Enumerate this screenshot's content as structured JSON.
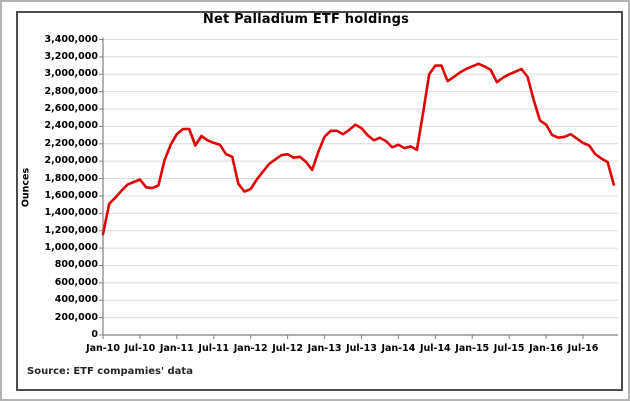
{
  "source": "Source: ETF compamies' data",
  "chart_data": {
    "type": "line",
    "title": "Net Palladium ETF holdings",
    "xlabel": "",
    "ylabel": "Ounces",
    "ylim": [
      0,
      3400000
    ],
    "ytick_step": 200000,
    "grid": "horizontal",
    "legend_position": "none",
    "line_color": "#e00404",
    "grid_color": "#dcdcdc",
    "axis_color": "#7f7f7f",
    "x_tick_labels": [
      "Jan-10",
      "Jul-10",
      "Jan-11",
      "Jul-11",
      "Jan-12",
      "Jul-12",
      "Jan-13",
      "Jul-13",
      "Jan-14",
      "Jul-14",
      "Jan-15",
      "Jul-15",
      "Jan-16",
      "Jul-16"
    ],
    "x_tick_every": 6,
    "categories": [
      "Jan-10",
      "Feb-10",
      "Mar-10",
      "Apr-10",
      "May-10",
      "Jun-10",
      "Jul-10",
      "Aug-10",
      "Sep-10",
      "Oct-10",
      "Nov-10",
      "Dec-10",
      "Jan-11",
      "Feb-11",
      "Mar-11",
      "Apr-11",
      "May-11",
      "Jun-11",
      "Jul-11",
      "Aug-11",
      "Sep-11",
      "Oct-11",
      "Nov-11",
      "Dec-11",
      "Jan-12",
      "Feb-12",
      "Mar-12",
      "Apr-12",
      "May-12",
      "Jun-12",
      "Jul-12",
      "Aug-12",
      "Sep-12",
      "Oct-12",
      "Nov-12",
      "Dec-12",
      "Jan-13",
      "Feb-13",
      "Mar-13",
      "Apr-13",
      "May-13",
      "Jun-13",
      "Jul-13",
      "Aug-13",
      "Sep-13",
      "Oct-13",
      "Nov-13",
      "Dec-13",
      "Jan-14",
      "Feb-14",
      "Mar-14",
      "Apr-14",
      "May-14",
      "Jun-14",
      "Jul-14",
      "Aug-14",
      "Sep-14",
      "Oct-14",
      "Nov-14",
      "Dec-14",
      "Jan-15",
      "Feb-15",
      "Mar-15",
      "Apr-15",
      "May-15",
      "Jun-15",
      "Jul-15",
      "Aug-15",
      "Sep-15",
      "Oct-15",
      "Nov-15",
      "Dec-15",
      "Jan-16",
      "Feb-16",
      "Mar-16",
      "Apr-16",
      "May-16",
      "Jun-16",
      "Jul-16",
      "Aug-16",
      "Sep-16",
      "Oct-16",
      "Nov-16",
      "Dec-16"
    ],
    "values": [
      1160000,
      1510000,
      1580000,
      1660000,
      1730000,
      1760000,
      1790000,
      1700000,
      1690000,
      1720000,
      2010000,
      2190000,
      2310000,
      2370000,
      2370000,
      2180000,
      2290000,
      2240000,
      2210000,
      2190000,
      2080000,
      2050000,
      1740000,
      1650000,
      1680000,
      1790000,
      1880000,
      1970000,
      2020000,
      2070000,
      2080000,
      2040000,
      2050000,
      1990000,
      1900000,
      2110000,
      2280000,
      2350000,
      2350000,
      2310000,
      2360000,
      2420000,
      2380000,
      2300000,
      2240000,
      2270000,
      2230000,
      2160000,
      2190000,
      2150000,
      2170000,
      2130000,
      2550000,
      3000000,
      3100000,
      3100000,
      2920000,
      2970000,
      3020000,
      3060000,
      3090000,
      3120000,
      3090000,
      3050000,
      2910000,
      2960000,
      3000000,
      3030000,
      3060000,
      2970000,
      2700000,
      2470000,
      2420000,
      2300000,
      2270000,
      2280000,
      2310000,
      2260000,
      2210000,
      2180000,
      2080000,
      2030000,
      1990000,
      1730000
    ],
    "source_note": "Source: ETF compamies' data"
  }
}
